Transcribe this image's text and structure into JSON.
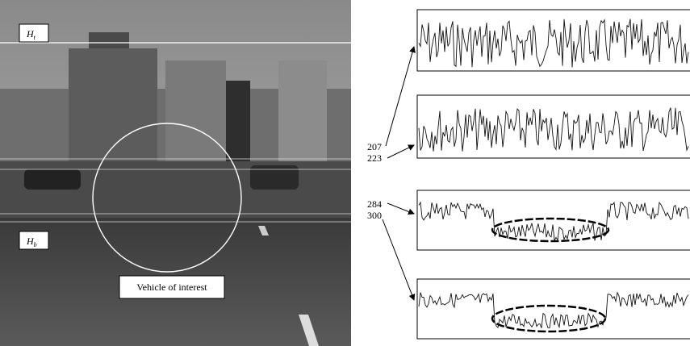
{
  "photo": {
    "regions": [
      {
        "symbol": "H",
        "sub": "t"
      },
      {
        "symbol": "H",
        "sub": "b"
      }
    ],
    "caption": "Vehicle of interest"
  },
  "rows": [
    "207",
    "223",
    "284",
    "300"
  ]
}
